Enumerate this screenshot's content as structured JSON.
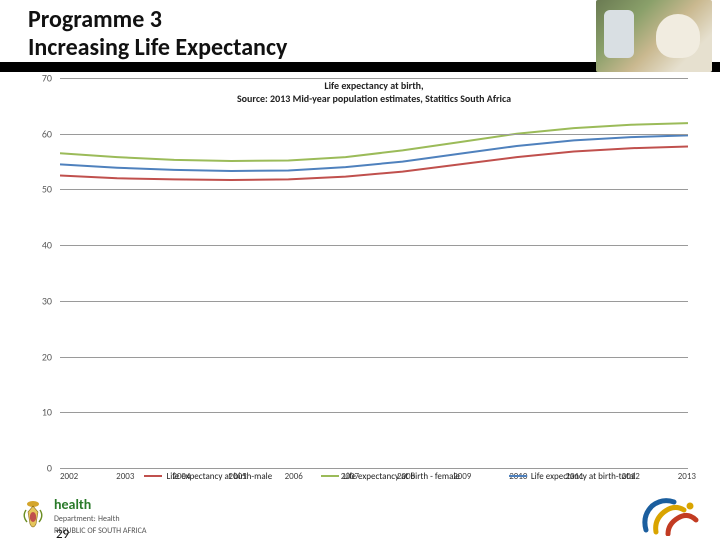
{
  "header": {
    "title_line1": "Programme 3",
    "title_line2": "Increasing Life Expectancy"
  },
  "chart": {
    "type": "line",
    "title_line1": "Life expectancy at birth,",
    "title_line2": "Source: 2013 Mid-year population estimates, Statitics South Africa",
    "title_fontsize": 10,
    "background_color": "#ffffff",
    "grid_color": "#9a9a9a",
    "ylim": [
      0,
      70
    ],
    "ytick_step": 10,
    "yticks": [
      0,
      10,
      20,
      30,
      40,
      50,
      60,
      70
    ],
    "x_categories": [
      "2002",
      "2003",
      "2004",
      "2005",
      "2006",
      "2007",
      "2008",
      "2009",
      "2010",
      "2011",
      "2012",
      "2013"
    ],
    "series": [
      {
        "name": "Life expectancy at birth-male",
        "color": "#c0504d",
        "width": 2,
        "values": [
          52.5,
          52.0,
          51.8,
          51.7,
          51.8,
          52.3,
          53.2,
          54.5,
          55.8,
          56.8,
          57.4,
          57.7
        ]
      },
      {
        "name": "Life expectancy at birth - female",
        "color": "#9bbb59",
        "width": 2,
        "values": [
          56.5,
          55.8,
          55.3,
          55.1,
          55.2,
          55.8,
          57.0,
          58.5,
          60.0,
          61.0,
          61.6,
          61.9
        ]
      },
      {
        "name": "Life expectancy at birth-total",
        "color": "#4f81bd",
        "width": 2,
        "values": [
          54.5,
          53.9,
          53.5,
          53.3,
          53.4,
          54.0,
          55.0,
          56.4,
          57.8,
          58.8,
          59.4,
          59.7
        ]
      }
    ]
  },
  "footer": {
    "brand": "health",
    "dept_line1": "Department:",
    "dept_line2": "Health",
    "dept_line3": "REPUBLIC OF SOUTH AFRICA",
    "page_number": "29"
  }
}
